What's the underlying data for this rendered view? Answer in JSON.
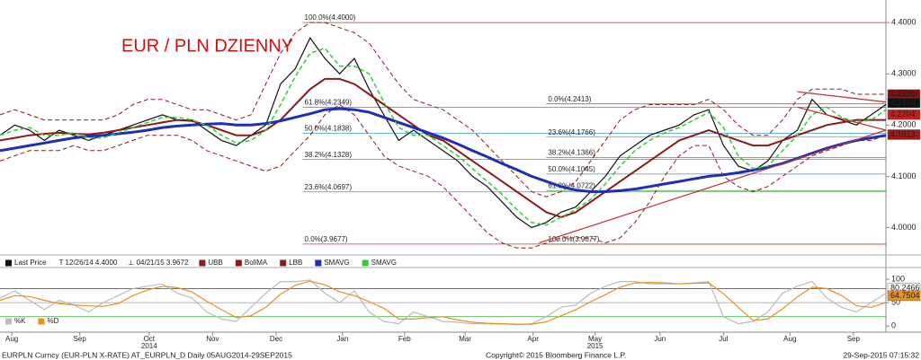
{
  "chart_data": [
    {
      "type": "line",
      "title": "EUR / PLN DZIENNY",
      "xlim": [
        0,
        60
      ],
      "ylim": [
        3.95,
        4.43
      ],
      "yticks": [
        {
          "value": 4.0,
          "label": "4.0000"
        },
        {
          "value": 4.1,
          "label": "4.1000"
        },
        {
          "value": 4.2,
          "label": "4.2000"
        },
        {
          "value": 4.3,
          "label": "4.3000"
        },
        {
          "value": 4.4,
          "label": "4.4000"
        }
      ],
      "annotations": [
        "T 12/26/14 4.4000",
        "⊥ 04/21/15 3.9672"
      ],
      "series": [
        {
          "name": "Last Price",
          "color": "#111111",
          "width": 1.2,
          "dash": false,
          "values": [
            4.18,
            4.2,
            4.19,
            4.17,
            4.19,
            4.18,
            4.17,
            4.18,
            4.19,
            4.2,
            4.21,
            4.22,
            4.21,
            4.21,
            4.19,
            4.17,
            4.16,
            4.18,
            4.2,
            4.28,
            4.31,
            4.37,
            4.33,
            4.3,
            4.33,
            4.27,
            4.22,
            4.17,
            4.19,
            4.17,
            4.15,
            4.13,
            4.1,
            4.08,
            4.05,
            4.02,
            4.0,
            4.01,
            4.03,
            4.04,
            4.07,
            4.1,
            4.14,
            4.16,
            4.18,
            4.19,
            4.2,
            4.22,
            4.23,
            4.16,
            4.12,
            4.11,
            4.13,
            4.17,
            4.19,
            4.25,
            4.22,
            4.21,
            4.2,
            4.22,
            4.24
          ]
        },
        {
          "name": "UBB",
          "color": "#8b1a1a",
          "width": 1,
          "dash": true,
          "values": [
            4.22,
            4.23,
            4.22,
            4.21,
            4.21,
            4.21,
            4.21,
            4.21,
            4.22,
            4.24,
            4.25,
            4.25,
            4.24,
            4.23,
            4.23,
            4.22,
            4.21,
            4.22,
            4.28,
            4.34,
            4.38,
            4.4,
            4.4,
            4.39,
            4.38,
            4.36,
            4.32,
            4.28,
            4.25,
            4.24,
            4.23,
            4.21,
            4.19,
            4.16,
            4.13,
            4.1,
            4.07,
            4.06,
            4.07,
            4.09,
            4.13,
            4.17,
            4.21,
            4.23,
            4.24,
            4.24,
            4.24,
            4.24,
            4.25,
            4.23,
            4.2,
            4.18,
            4.18,
            4.21,
            4.25,
            4.27,
            4.27,
            4.27,
            4.26,
            4.26,
            4.26
          ]
        },
        {
          "name": "BollMA",
          "color": "#8b1a1a",
          "width": 2,
          "dash": false,
          "values": [
            4.17,
            4.175,
            4.18,
            4.183,
            4.185,
            4.183,
            4.182,
            4.185,
            4.19,
            4.195,
            4.2,
            4.205,
            4.21,
            4.208,
            4.2,
            4.19,
            4.18,
            4.18,
            4.19,
            4.21,
            4.24,
            4.27,
            4.29,
            4.29,
            4.28,
            4.26,
            4.24,
            4.22,
            4.2,
            4.18,
            4.17,
            4.15,
            4.13,
            4.11,
            4.09,
            4.07,
            4.05,
            4.03,
            4.02,
            4.03,
            4.05,
            4.07,
            4.09,
            4.11,
            4.13,
            4.15,
            4.17,
            4.18,
            4.19,
            4.18,
            4.17,
            4.16,
            4.16,
            4.17,
            4.18,
            4.19,
            4.2,
            4.205,
            4.21,
            4.21,
            4.21
          ]
        },
        {
          "name": "LBB",
          "color": "#8b1a1a",
          "width": 1,
          "dash": true,
          "values": [
            4.13,
            4.14,
            4.15,
            4.15,
            4.15,
            4.16,
            4.15,
            4.15,
            4.16,
            4.17,
            4.18,
            4.18,
            4.18,
            4.17,
            4.15,
            4.14,
            4.13,
            4.12,
            4.11,
            4.12,
            4.15,
            4.18,
            4.22,
            4.24,
            4.22,
            4.18,
            4.14,
            4.12,
            4.11,
            4.1,
            4.08,
            4.05,
            4.02,
            3.99,
            3.97,
            3.96,
            3.96,
            3.97,
            3.98,
            3.98,
            3.98,
            3.97,
            3.98,
            4.01,
            4.05,
            4.1,
            4.14,
            4.16,
            4.16,
            4.1,
            4.08,
            4.07,
            4.08,
            4.1,
            4.12,
            4.14,
            4.15,
            4.16,
            4.17,
            4.17,
            4.18
          ]
        },
        {
          "name": "SMAVG",
          "color": "#1f2fb5",
          "width": 3,
          "dash": false,
          "values": [
            4.15,
            4.155,
            4.16,
            4.165,
            4.17,
            4.175,
            4.178,
            4.18,
            4.183,
            4.186,
            4.19,
            4.195,
            4.198,
            4.2,
            4.202,
            4.203,
            4.2,
            4.2,
            4.203,
            4.208,
            4.215,
            4.222,
            4.23,
            4.232,
            4.23,
            4.225,
            4.215,
            4.205,
            4.195,
            4.185,
            4.175,
            4.163,
            4.15,
            4.138,
            4.125,
            4.113,
            4.1,
            4.09,
            4.08,
            4.073,
            4.07,
            4.07,
            4.072,
            4.075,
            4.08,
            4.085,
            4.09,
            4.095,
            4.1,
            4.103,
            4.107,
            4.112,
            4.118,
            4.125,
            4.135,
            4.145,
            4.155,
            4.163,
            4.17,
            4.175,
            4.18
          ]
        },
        {
          "name": "SMAVG",
          "color": "#33cc33",
          "width": 1.5,
          "dash": true,
          "values": [
            4.18,
            4.19,
            4.195,
            4.18,
            4.18,
            4.185,
            4.175,
            4.175,
            4.185,
            4.195,
            4.205,
            4.215,
            4.215,
            4.21,
            4.2,
            4.18,
            4.165,
            4.17,
            4.19,
            4.24,
            4.295,
            4.34,
            4.35,
            4.315,
            4.315,
            4.3,
            4.245,
            4.195,
            4.18,
            4.18,
            4.16,
            4.14,
            4.115,
            4.09,
            4.065,
            4.035,
            4.01,
            4.005,
            4.02,
            4.035,
            4.055,
            4.085,
            4.12,
            4.15,
            4.17,
            4.185,
            4.195,
            4.21,
            4.225,
            4.195,
            4.14,
            4.115,
            4.12,
            4.15,
            4.18,
            4.22,
            4.235,
            4.215,
            4.205,
            4.21,
            4.23
          ]
        }
      ],
      "levels": [
        {
          "value": 4.4,
          "label": "100.0%(4.4000)",
          "start": 20.5,
          "color": "#c03030"
        },
        {
          "value": 4.2349,
          "label": "61.8%(4.2349)",
          "start": 20.5,
          "color": "#33aa33"
        },
        {
          "value": 4.1838,
          "label": "50.0%(4.1838)",
          "start": 20.5,
          "color": "#55aadd"
        },
        {
          "value": 4.1328,
          "label": "38.2%(4.1328)",
          "start": 20.5,
          "color": "#33aa33"
        },
        {
          "value": 4.0697,
          "label": "23.6%(4.0697)",
          "start": 20.5,
          "color": "#999999"
        },
        {
          "value": 3.9677,
          "label": "0.0%(3.9677)",
          "start": 20.5,
          "color": "#c03030"
        },
        {
          "value": 4.2413,
          "label": "0.0%(4.2413)",
          "start": 37,
          "color": "#c03030"
        },
        {
          "value": 4.1766,
          "label": "23.6%(4.1766)",
          "start": 37,
          "color": "#999999"
        },
        {
          "value": 4.1366,
          "label": "38.2%(4.1366)",
          "start": 37,
          "color": "#33aa33"
        },
        {
          "value": 4.1045,
          "label": "50.0%(4.1045)",
          "start": 37,
          "color": "#55aadd"
        },
        {
          "value": 4.0722,
          "label": "61.8%(4.0722)",
          "start": 37,
          "color": "#33aa33"
        },
        {
          "value": 3.9677,
          "label": "100.0%(3.9677)",
          "start": 37,
          "color": "#c03030"
        }
      ],
      "trendlines": [
        {
          "x": [
            36.5,
            60
          ],
          "y": [
            3.97,
            4.19
          ],
          "color": "#c03030"
        },
        {
          "x": [
            54,
            60
          ],
          "y": [
            4.265,
            4.245
          ],
          "color": "#c03030"
        },
        {
          "x": [
            54,
            60
          ],
          "y": [
            4.235,
            4.19
          ],
          "color": "#c03030"
        }
      ],
      "markers": [
        {
          "value": 4.2595,
          "color": "#7a1010"
        },
        {
          "value": 4.2434,
          "color": "#111111"
        },
        {
          "value": 4.2204,
          "color": "#c02020"
        },
        {
          "value": 4.1813,
          "color": "#a01818"
        }
      ]
    },
    {
      "type": "line",
      "xlim": [
        0,
        60
      ],
      "ylim": [
        -13,
        121
      ],
      "yticks": [
        0,
        50,
        100
      ],
      "xticks": [
        {
          "value": 0.8,
          "label": "Aug"
        },
        {
          "value": 5.4,
          "label": "Sep"
        },
        {
          "value": 10.1,
          "label": "Oct"
        },
        {
          "value": 14.4,
          "label": "Nov"
        },
        {
          "value": 18.7,
          "label": "Dec"
        },
        {
          "value": 23.2,
          "label": "Jan"
        },
        {
          "value": 27.4,
          "label": "Feb"
        },
        {
          "value": 31.5,
          "label": "Mar"
        },
        {
          "value": 36.1,
          "label": "Apr"
        },
        {
          "value": 40.3,
          "label": "May"
        },
        {
          "value": 44.7,
          "label": "Jun"
        },
        {
          "value": 49.0,
          "label": "Jul"
        },
        {
          "value": 53.5,
          "label": "Aug"
        },
        {
          "value": 57.8,
          "label": "Sep"
        }
      ],
      "years": [
        {
          "value": 10.1,
          "label": "2014"
        },
        {
          "value": 40.3,
          "label": "2015"
        }
      ],
      "series": [
        {
          "name": "%K",
          "color": "#bbbbbb",
          "width": 1.2,
          "dash": false,
          "values": [
            60,
            75,
            55,
            35,
            55,
            45,
            30,
            50,
            65,
            80,
            85,
            90,
            70,
            60,
            30,
            15,
            10,
            40,
            70,
            95,
            95,
            98,
            70,
            50,
            75,
            30,
            10,
            5,
            30,
            20,
            10,
            8,
            5,
            5,
            5,
            3,
            5,
            20,
            40,
            45,
            70,
            85,
            95,
            95,
            90,
            90,
            90,
            92,
            95,
            20,
            5,
            10,
            30,
            70,
            85,
            95,
            60,
            40,
            30,
            50,
            70
          ]
        },
        {
          "name": "%D",
          "color": "#e89020",
          "width": 1.2,
          "dash": false,
          "values": [
            55,
            65,
            63,
            55,
            48,
            45,
            43,
            42,
            48,
            65,
            77,
            85,
            82,
            73,
            53,
            35,
            18,
            22,
            40,
            68,
            87,
            96,
            88,
            73,
            65,
            52,
            38,
            15,
            15,
            18,
            20,
            13,
            8,
            6,
            5,
            4,
            4,
            9,
            22,
            35,
            52,
            67,
            83,
            92,
            93,
            92,
            90,
            91,
            92,
            69,
            40,
            12,
            15,
            37,
            62,
            83,
            80,
            65,
            43,
            40,
            50
          ]
        }
      ],
      "levels": [
        {
          "value": 80,
          "color": "#c03030"
        },
        {
          "value": 50,
          "color": "#999999"
        },
        {
          "value": 20,
          "color": "#33aa33"
        }
      ],
      "markers": [
        {
          "value": 80.2466,
          "color": "#ffffff"
        },
        {
          "value": 64.7504,
          "color": "#e89020"
        }
      ]
    }
  ],
  "footer": {
    "left": "EURPLN Curncy (EUR-PLN X-RATE) AT_EURPLN_D  Daily 05AUG2014-29SEP2015",
    "center": "Copyright© 2015 Bloomberg Finance L.P.",
    "right": "29-Sep-2015 07:15:32"
  }
}
